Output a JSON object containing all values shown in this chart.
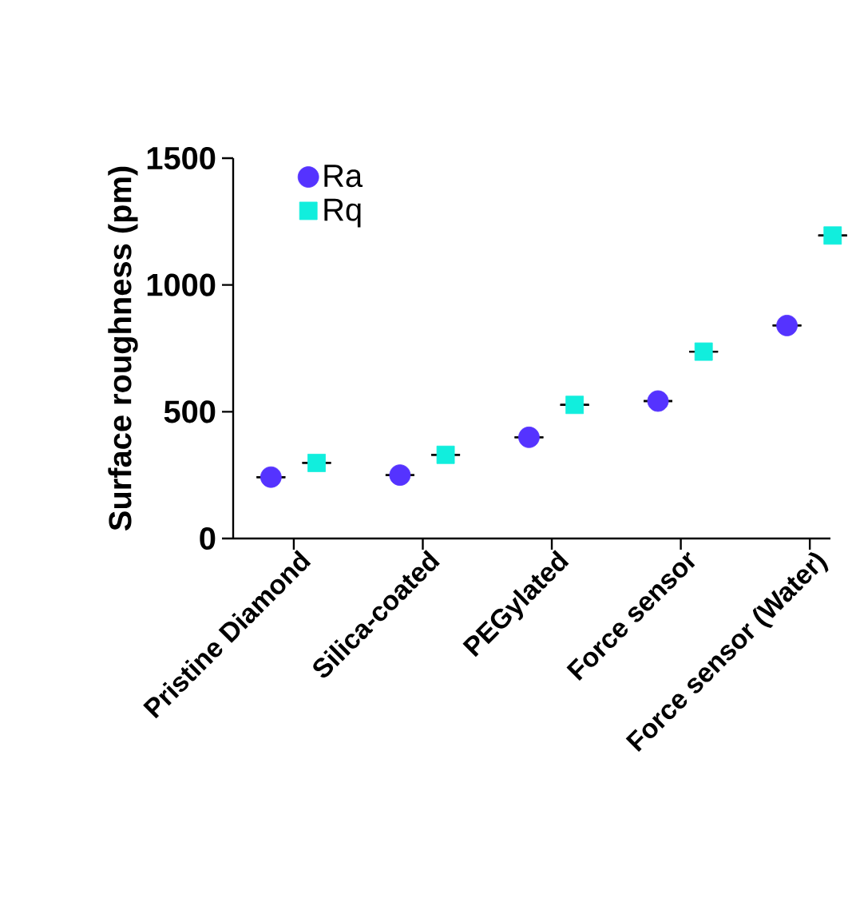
{
  "chart_data": {
    "type": "scatter",
    "ylabel": "Surface roughness (pm)",
    "categories": [
      "Pristine Diamond",
      "Silica-coated",
      "PEGylated",
      "Force sensor",
      "Force sensor (Water)"
    ],
    "series": [
      {
        "name": "Ra",
        "color": "#5533ff",
        "marker": "circle",
        "values": [
          242,
          250,
          399,
          542,
          840
        ],
        "errors": [
          0,
          0,
          0,
          0,
          0
        ]
      },
      {
        "name": "Rq",
        "color": "#11eedd",
        "marker": "square",
        "values": [
          298,
          330,
          527,
          737,
          1195
        ],
        "errors": [
          0,
          0,
          0,
          0,
          0
        ]
      }
    ],
    "ylim": [
      0,
      1500
    ],
    "yticks": [
      0,
      500,
      1000,
      1500
    ],
    "legend": "top left",
    "grid": false
  }
}
